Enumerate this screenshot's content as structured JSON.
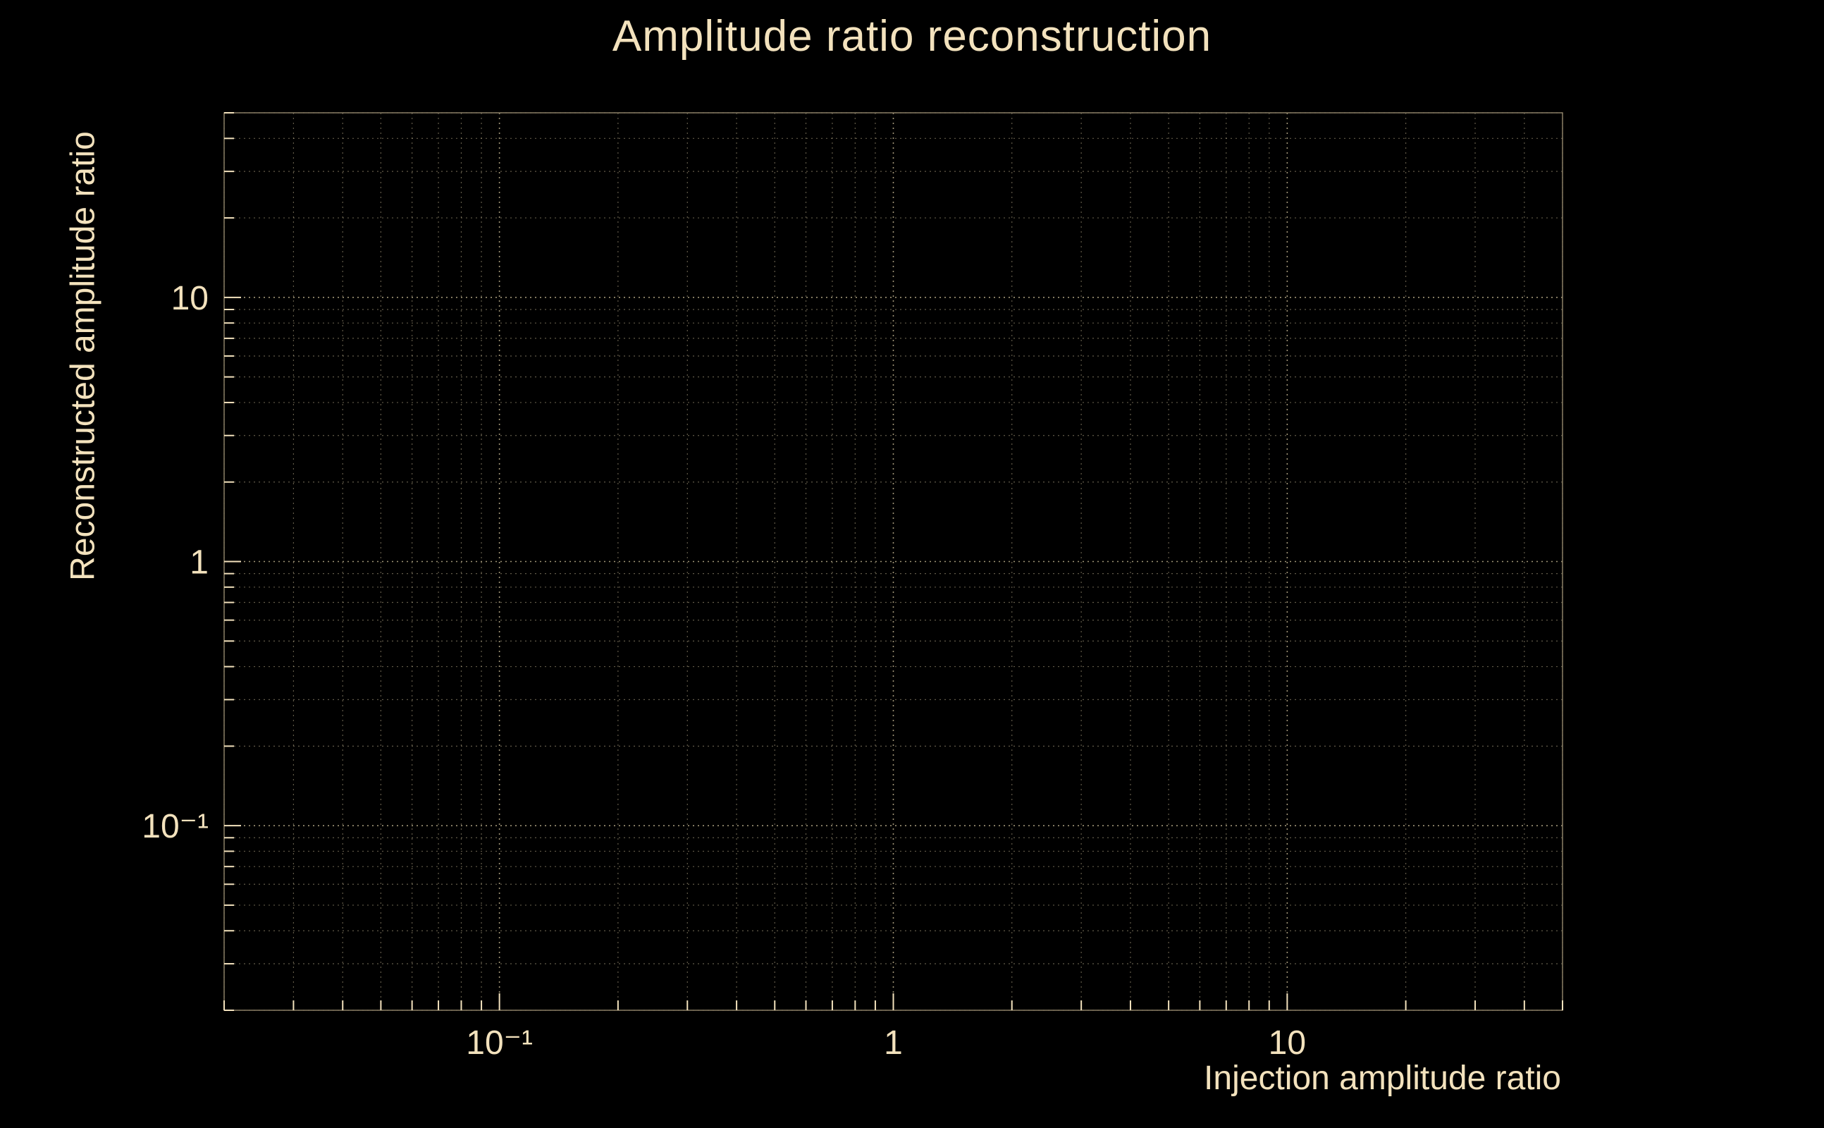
{
  "colors": {
    "background": "#000000",
    "text": "#f3e2bd",
    "grid": "#cdbf99",
    "axis": "#8a7f66"
  },
  "chart_data": {
    "type": "scatter",
    "title": "Amplitude ratio reconstruction",
    "xlabel": "Injection amplitude ratio",
    "ylabel": "Reconstructed amplitude ratio",
    "xscale": "log",
    "yscale": "log",
    "xlim": [
      0.02,
      50
    ],
    "ylim": [
      0.02,
      50
    ],
    "x_ticks": [
      {
        "value": 0.1,
        "label": "10⁻¹"
      },
      {
        "value": 1,
        "label": "1"
      },
      {
        "value": 10,
        "label": "10"
      }
    ],
    "y_ticks": [
      {
        "value": 0.1,
        "label": "10⁻¹"
      },
      {
        "value": 1,
        "label": "1"
      },
      {
        "value": 10,
        "label": "10"
      }
    ],
    "grid": "major and minor log gridlines, dotted, both axes",
    "legend": "none",
    "series": []
  }
}
